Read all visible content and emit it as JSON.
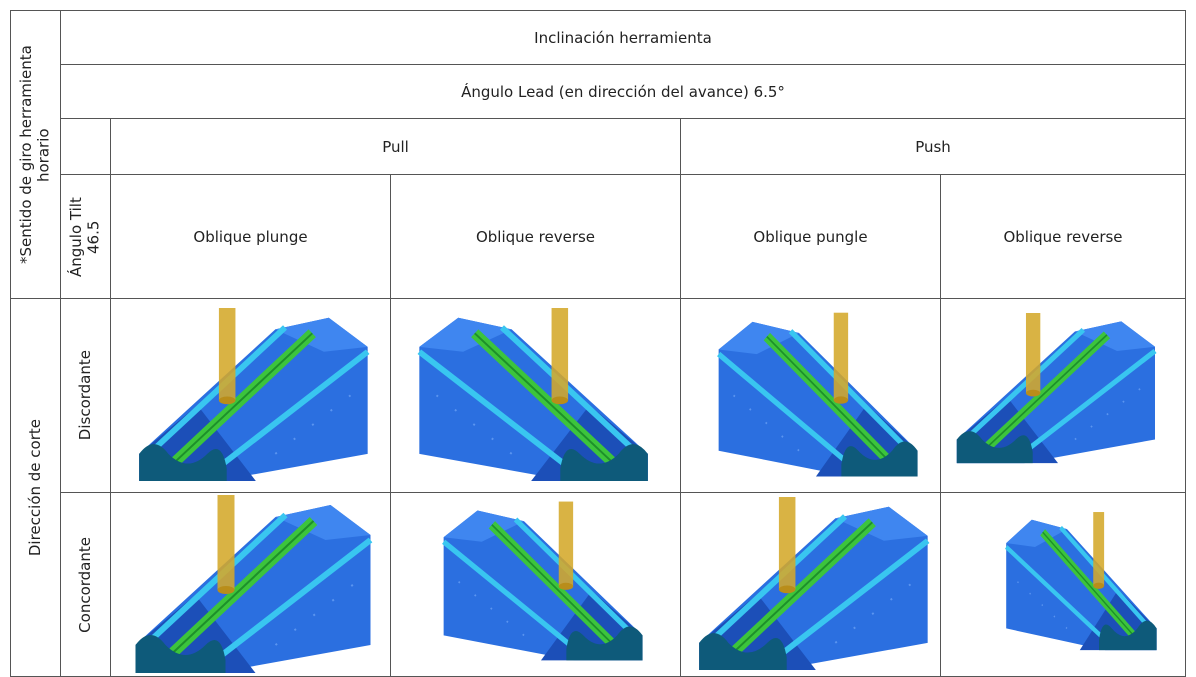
{
  "table": {
    "side_header": "*Sentido de giro herramienta horario",
    "title": "Inclinación herramienta",
    "lead_angle": "Ángulo Lead (en dirección del avance) 6.5°",
    "groups": [
      "Pull",
      "Push"
    ],
    "tilt_angle": "Ángulo Tilt 46.5",
    "strategies": [
      "Oblique plunge",
      "Oblique reverse",
      "Oblique pungle",
      "Oblique reverse"
    ],
    "direction_header": "Dirección de corte",
    "rows": [
      "Discordante",
      "Concordante"
    ]
  }
}
